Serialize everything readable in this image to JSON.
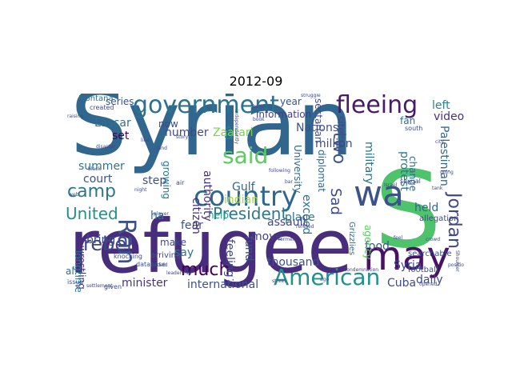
{
  "figure": {
    "title": "2012-09"
  },
  "words": [
    {
      "text": "Syrian",
      "color": "#31678e",
      "vertical": false
    },
    {
      "text": "refugee",
      "color": "#472d7b",
      "vertical": false
    },
    {
      "text": "S",
      "color": "#4ec36b",
      "vertical": false
    },
    {
      "text": "may",
      "color": "#471164",
      "vertical": false
    },
    {
      "text": "wa",
      "color": "#3b528b",
      "vertical": false
    },
    {
      "text": "country",
      "color": "#31678e",
      "vertical": false
    },
    {
      "text": "government",
      "color": "#2c728e",
      "vertical": false
    },
    {
      "text": "fleeing",
      "color": "#481a6c",
      "vertical": false
    },
    {
      "text": "American",
      "color": "#21918c",
      "vertical": false
    },
    {
      "text": "said",
      "color": "#5ec962",
      "vertical": false
    },
    {
      "text": "Ran",
      "color": "#3b528b",
      "vertical": true
    },
    {
      "text": "rebel",
      "color": "#414487",
      "vertical": false
    },
    {
      "text": "much",
      "color": "#440154",
      "vertical": false
    },
    {
      "text": "camp",
      "color": "#2a788e",
      "vertical": false
    },
    {
      "text": "United",
      "color": "#21918c",
      "vertical": false
    },
    {
      "text": "President",
      "color": "#2a788e",
      "vertical": false
    },
    {
      "text": "Jordan",
      "color": "#3e4989",
      "vertical": true
    },
    {
      "text": "two",
      "color": "#3b528b",
      "vertical": true
    },
    {
      "text": "â",
      "color": "#25848e",
      "vertical": false
    },
    {
      "text": "left",
      "color": "#25848e",
      "vertical": false
    },
    {
      "text": "video",
      "color": "#46317e",
      "vertical": false
    },
    {
      "text": "Lascar",
      "color": "#2c728e",
      "vertical": false
    },
    {
      "text": "number",
      "color": "#3e4989",
      "vertical": false
    },
    {
      "text": "Zaatari",
      "color": "#7ad151",
      "vertical": false
    },
    {
      "text": "information",
      "color": "#433e85",
      "vertical": false
    },
    {
      "text": "Nations",
      "color": "#3b528b",
      "vertical": false
    },
    {
      "text": "fan",
      "color": "#2c728e",
      "vertical": false
    },
    {
      "text": "site",
      "color": "#3e4989",
      "vertical": true
    },
    {
      "text": "million",
      "color": "#3e4989",
      "vertical": false
    },
    {
      "text": "Gulf",
      "color": "#31688e",
      "vertical": false
    },
    {
      "text": "indian",
      "color": "#a0da39",
      "vertical": false
    },
    {
      "text": "summer",
      "color": "#2a788e",
      "vertical": false
    },
    {
      "text": "court",
      "color": "#3b528b",
      "vertical": false
    },
    {
      "text": "set",
      "color": "#440154",
      "vertical": false
    },
    {
      "text": "now",
      "color": "#3e4989",
      "vertical": false
    },
    {
      "text": "step",
      "color": "#3b528b",
      "vertical": false
    },
    {
      "text": "fear",
      "color": "#3b528b",
      "vertical": false
    },
    {
      "text": "growing",
      "color": "#2c728e",
      "vertical": true
    },
    {
      "text": "authority",
      "color": "#46327e",
      "vertical": true
    },
    {
      "text": "citizen",
      "color": "#46327e",
      "vertical": true
    },
    {
      "text": "help",
      "color": "#1f9e89",
      "vertical": false
    },
    {
      "text": "assault",
      "color": "#3e4989",
      "vertical": false
    },
    {
      "text": "move",
      "color": "#414487",
      "vertical": false
    },
    {
      "text": "ha",
      "color": "#2a788e",
      "vertical": false
    },
    {
      "text": "bring",
      "color": "#3e4989",
      "vertical": false
    },
    {
      "text": "say",
      "color": "#2a788e",
      "vertical": false
    },
    {
      "text": "international",
      "color": "#3b528b",
      "vertical": false
    },
    {
      "text": "minister",
      "color": "#46337f",
      "vertical": false
    },
    {
      "text": "al",
      "color": "#2c728e",
      "vertical": false
    },
    {
      "text": "military",
      "color": "#2c728e",
      "vertical": true
    },
    {
      "text": "protest",
      "color": "#2a788e",
      "vertical": true
    },
    {
      "text": "change",
      "color": "#31688e",
      "vertical": true
    },
    {
      "text": "Palestinian",
      "color": "#31688e",
      "vertical": true
    },
    {
      "text": "held",
      "color": "#31688e",
      "vertical": false
    },
    {
      "text": "place",
      "color": "#2a788e",
      "vertical": false
    },
    {
      "text": "food",
      "color": "#3b528b",
      "vertical": false
    },
    {
      "text": "Syria",
      "color": "#3e4989",
      "vertical": false
    },
    {
      "text": "thousand",
      "color": "#3b528b",
      "vertical": false
    },
    {
      "text": "Cuba",
      "color": "#3e4989",
      "vertical": false
    },
    {
      "text": "daily",
      "color": "#3e4989",
      "vertical": false
    },
    {
      "text": "exceed",
      "color": "#2c728e",
      "vertical": true
    },
    {
      "text": "Sad",
      "color": "#3e4989",
      "vertical": true
    },
    {
      "text": "year",
      "color": "#3b528b",
      "vertical": false
    },
    {
      "text": "diplomat",
      "color": "#31688e",
      "vertical": true
    },
    {
      "text": "University",
      "color": "#31688e",
      "vertical": true
    },
    {
      "text": "sectarian",
      "color": "#3e4989",
      "vertical": true
    },
    {
      "text": "fund",
      "color": "#3b528b",
      "vertical": true
    },
    {
      "text": "feeling",
      "color": "#3e4989",
      "vertical": true
    },
    {
      "text": "make",
      "color": "#3e4989",
      "vertical": false
    },
    {
      "text": "wrestling",
      "color": "#46337f",
      "vertical": true
    },
    {
      "text": "longtime",
      "color": "#2a788e",
      "vertical": true
    },
    {
      "text": "arriving",
      "color": "#3b528b",
      "vertical": false
    },
    {
      "text": "Grizzlies",
      "color": "#31688e",
      "vertical": true
    },
    {
      "text": "series",
      "color": "#3b528b",
      "vertical": false
    },
    {
      "text": "Montana",
      "color": "#2c728e",
      "vertical": false
    },
    {
      "text": "agency",
      "color": "#5ec962",
      "vertical": true
    },
    {
      "text": "football",
      "color": "#3b528b",
      "vertical": false
    },
    {
      "text": "allegation",
      "color": "#3e4989",
      "vertical": false
    },
    {
      "text": "searchable",
      "color": "#3b528b",
      "vertical": false
    },
    {
      "text": "database",
      "color": "#3b528b",
      "vertical": false
    },
    {
      "text": "given",
      "color": "#3e4989",
      "vertical": false
    },
    {
      "text": "issue",
      "color": "#3e4989",
      "vertical": false
    },
    {
      "text": "knocking",
      "color": "#3e4989",
      "vertical": false
    },
    {
      "text": "leadership",
      "color": "#3e4989",
      "vertical": false
    },
    {
      "text": "sexual",
      "color": "#3e4989",
      "vertical": false
    },
    {
      "text": "south",
      "color": "#3e4989",
      "vertical": false
    },
    {
      "text": "created",
      "color": "#3e4989",
      "vertical": false
    },
    {
      "text": "struggle",
      "color": "#3e4989",
      "vertical": false
    },
    {
      "text": "building",
      "color": "#3e4989",
      "vertical": false
    },
    {
      "text": "night",
      "color": "#3e4989",
      "vertical": false
    },
    {
      "text": "web",
      "color": "#3e4989",
      "vertical": false
    },
    {
      "text": "air",
      "color": "#3e4989",
      "vertical": false
    },
    {
      "text": "story",
      "color": "#3e4989",
      "vertical": false
    },
    {
      "text": "player",
      "color": "#3e4989",
      "vertical": false
    },
    {
      "text": "picked",
      "color": "#3e4989",
      "vertical": false
    },
    {
      "text": "independently",
      "color": "#3e4989",
      "vertical": true
    },
    {
      "text": "Israel",
      "color": "#3e4989",
      "vertical": false
    },
    {
      "text": "condemnation",
      "color": "#3e4989",
      "vertical": false
    },
    {
      "text": "following",
      "color": "#3e4989",
      "vertical": false
    },
    {
      "text": "refused",
      "color": "#3e4989",
      "vertical": false
    },
    {
      "text": "ago",
      "color": "#3e4989",
      "vertical": false
    },
    {
      "text": "black",
      "color": "#3e4989",
      "vertical": false
    },
    {
      "text": "raising",
      "color": "#3e4989",
      "vertical": false
    },
    {
      "text": "book",
      "color": "#3e4989",
      "vertical": false
    },
    {
      "text": "former",
      "color": "#3e4989",
      "vertical": false
    },
    {
      "text": "street",
      "color": "#3e4989",
      "vertical": false
    },
    {
      "text": "settlement",
      "color": "#3e4989",
      "vertical": false
    },
    {
      "text": "feel",
      "color": "#3e4989",
      "vertical": false
    },
    {
      "text": "crowd",
      "color": "#3e4989",
      "vertical": false
    },
    {
      "text": "going",
      "color": "#3e4989",
      "vertical": false
    },
    {
      "text": "land",
      "color": "#3e4989",
      "vertical": false
    },
    {
      "text": "line",
      "color": "#3e4989",
      "vertical": false
    },
    {
      "text": "city",
      "color": "#3e4989",
      "vertical": false
    },
    {
      "text": "disaster",
      "color": "#3e4989",
      "vertical": false
    },
    {
      "text": "Shoulder",
      "color": "#3e4989",
      "vertical": true
    },
    {
      "text": "position",
      "color": "#3e4989",
      "vertical": false
    },
    {
      "text": "bar",
      "color": "#3e4989",
      "vertical": false
    },
    {
      "text": "tank",
      "color": "#3e4989",
      "vertical": false
    },
    {
      "text": "opened",
      "color": "#3e4989",
      "vertical": false
    }
  ]
}
